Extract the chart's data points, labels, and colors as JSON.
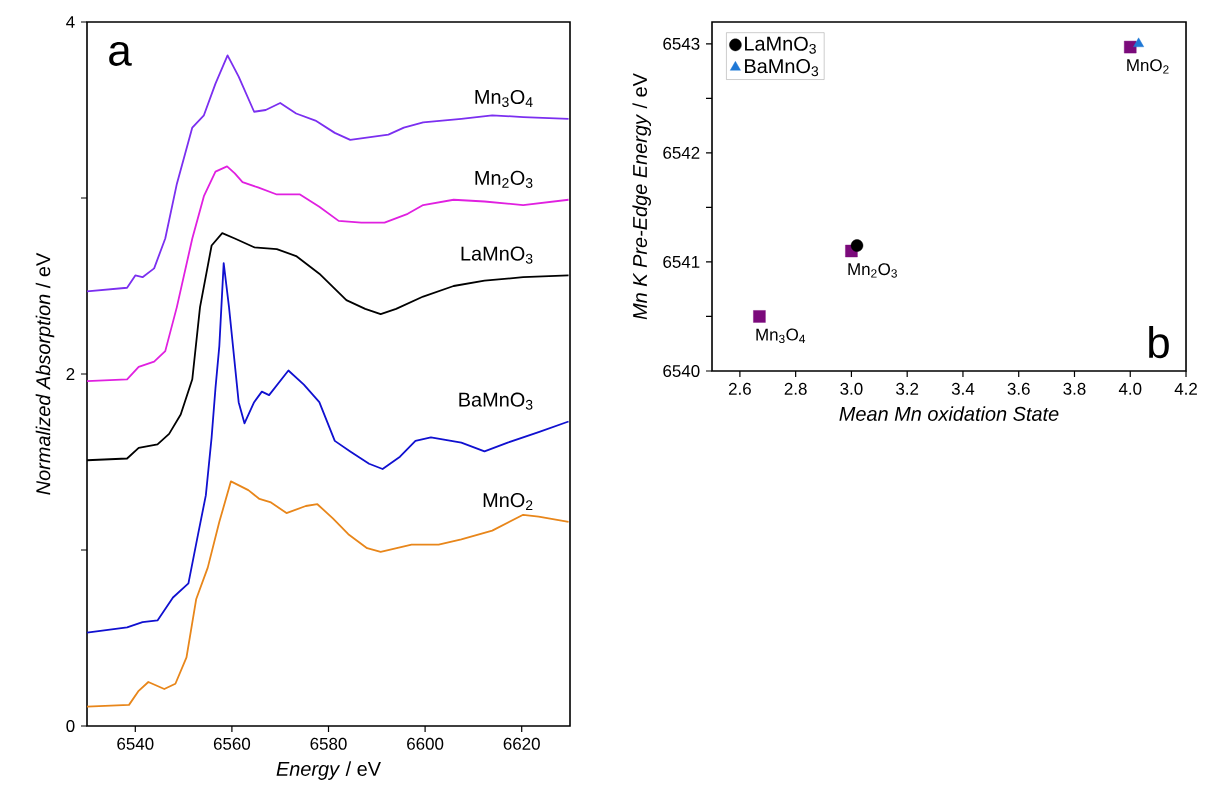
{
  "chart_data": [
    {
      "type": "line",
      "xlabel": "*Energy* / eV",
      "ylabel": "*Normalized Absorption* / eV",
      "annotations": [
        "a"
      ],
      "xlim": [
        6530,
        6630
      ],
      "ylim": [
        0,
        4
      ],
      "xticks": [
        6540,
        6560,
        6580,
        6600,
        6620
      ],
      "yticks": [
        0,
        {
          "value": 1,
          "label": null
        },
        2,
        {
          "value": 3,
          "label": null
        },
        4
      ],
      "series": [
        {
          "name": "Mn$_{3}$O$_{4}$",
          "color": "#7b2ff0",
          "x": [
            6530,
            6538.3,
            6540,
            6541.5,
            6543.9,
            6546.2,
            6548.6,
            6551.8,
            6554.2,
            6556.6,
            6559.1,
            6561.4,
            6564.6,
            6567,
            6570,
            6573.3,
            6577.3,
            6581.3,
            6584.5,
            6592.4,
            6595.6,
            6599.6,
            6607.5,
            6613.9,
            6620.3,
            6629.7
          ],
          "values": [
            2.47,
            2.49,
            2.56,
            2.55,
            2.6,
            2.77,
            3.08,
            3.4,
            3.47,
            3.65,
            3.81,
            3.69,
            3.49,
            3.5,
            3.54,
            3.48,
            3.44,
            3.37,
            3.33,
            3.36,
            3.4,
            3.43,
            3.45,
            3.47,
            3.46,
            3.45
          ]
        },
        {
          "name": "Mn$_{2}$O$_{3}$",
          "color": "#e020e0",
          "x": [
            6530,
            6538.3,
            6540.7,
            6543.9,
            6546.2,
            6548.6,
            6551.8,
            6554.2,
            6556.6,
            6559,
            6560.6,
            6562.2,
            6565.4,
            6569.3,
            6574.1,
            6578.1,
            6582.1,
            6586.8,
            6591.6,
            6596.4,
            6599.6,
            6605.9,
            6612.3,
            6620.3,
            6629.7
          ],
          "values": [
            1.96,
            1.97,
            2.04,
            2.07,
            2.13,
            2.38,
            2.77,
            3.01,
            3.15,
            3.18,
            3.14,
            3.09,
            3.06,
            3.02,
            3.02,
            2.95,
            2.87,
            2.86,
            2.86,
            2.91,
            2.96,
            2.99,
            2.98,
            2.96,
            2.99
          ]
        },
        {
          "name": "LaMnO$_{3}$",
          "color": "#000000",
          "x": [
            6530,
            6538.3,
            6540.7,
            6544.6,
            6547,
            6549.4,
            6551.8,
            6553.4,
            6555.8,
            6558,
            6560.6,
            6564.6,
            6569.3,
            6573.3,
            6578.1,
            6583.7,
            6587.6,
            6590.8,
            6594,
            6599.6,
            6605.9,
            6612.3,
            6620.3,
            6629.7
          ],
          "values": [
            1.51,
            1.52,
            1.58,
            1.6,
            1.66,
            1.77,
            1.97,
            2.38,
            2.73,
            2.8,
            2.77,
            2.72,
            2.71,
            2.67,
            2.57,
            2.42,
            2.37,
            2.34,
            2.37,
            2.44,
            2.5,
            2.53,
            2.55,
            2.56
          ]
        },
        {
          "name": "BaMnO$_{3}$",
          "color": "#1010d0",
          "x": [
            6530,
            6538.3,
            6541.5,
            6544.6,
            6547.8,
            6551,
            6553,
            6554.6,
            6555.8,
            6556.6,
            6557.4,
            6558.3,
            6559.4,
            6561.4,
            6562.6,
            6564.6,
            6566.2,
            6567.7,
            6571.7,
            6574.9,
            6578.1,
            6581.3,
            6584.5,
            6588.4,
            6591.2,
            6594.8,
            6598,
            6601.2,
            6607.5,
            6612.3,
            6617.1,
            6623.5,
            6629.7
          ],
          "values": [
            0.53,
            0.56,
            0.59,
            0.6,
            0.73,
            0.81,
            1.09,
            1.31,
            1.64,
            1.92,
            2.16,
            2.63,
            2.38,
            1.84,
            1.72,
            1.84,
            1.9,
            1.88,
            2.02,
            1.94,
            1.84,
            1.62,
            1.56,
            1.49,
            1.46,
            1.53,
            1.62,
            1.64,
            1.61,
            1.56,
            1.61,
            1.67,
            1.73
          ]
        },
        {
          "name": "MnO$_{2}$",
          "color": "#e8861a",
          "x": [
            6530,
            6538.7,
            6540.7,
            6542.7,
            6546,
            6548.3,
            6550.6,
            6552.6,
            6555,
            6557.4,
            6559.8,
            6563.4,
            6565.7,
            6568.1,
            6571.3,
            6575.3,
            6577.7,
            6580.9,
            6584.1,
            6588,
            6590.8,
            6597.2,
            6602.8,
            6607.5,
            6613.9,
            6620.3,
            6623.5,
            6629.7
          ],
          "values": [
            0.11,
            0.12,
            0.2,
            0.25,
            0.21,
            0.24,
            0.39,
            0.72,
            0.9,
            1.16,
            1.39,
            1.34,
            1.29,
            1.27,
            1.21,
            1.25,
            1.26,
            1.18,
            1.09,
            1.01,
            0.99,
            1.03,
            1.03,
            1.06,
            1.11,
            1.2,
            1.19,
            1.16
          ]
        }
      ]
    },
    {
      "type": "scatter",
      "xlabel": "Mean Mn oxidation State",
      "ylabel": "*Mn K Pre-Edge Energy* / eV",
      "legend": "top left",
      "annotations": [
        "b",
        {
          "text": "Mn$_{3}$O$_{4}$",
          "x": 2.67,
          "y": 6540.5
        },
        {
          "text": "Mn$_{2}$O$_{3}$",
          "x": 3.0,
          "y": 6541.1
        },
        {
          "text": "MnO$_{2}$",
          "x": 4.0,
          "y": 6542.97
        }
      ],
      "xlim": [
        2.5,
        4.2
      ],
      "ylim": [
        6540,
        6543.2
      ],
      "xticks": [
        2.6,
        2.8,
        {
          "value": 3,
          "label": "3.0"
        },
        3.2,
        3.4,
        3.6,
        3.8,
        {
          "value": 4,
          "label": "4.0"
        },
        4.2
      ],
      "yticks": [
        6540,
        {
          "value": 6540.5,
          "label": null
        },
        6541,
        {
          "value": 6541.5,
          "label": null
        },
        6542,
        {
          "value": 6542.5,
          "label": null
        },
        6543
      ],
      "series": [
        {
          "color": "#7b0a7b",
          "marker": "square",
          "x": [
            2.67,
            3.0,
            4.0
          ],
          "values": [
            6540.5,
            6541.1,
            6542.97
          ]
        },
        {
          "name": "LaMnO$_{3}$",
          "color": "#000000",
          "marker": "circle",
          "x": [
            3.02
          ],
          "values": [
            6541.15
          ]
        },
        {
          "name": "BaMnO$_{3}$",
          "color": "#1f78d6",
          "marker": "triangle",
          "x": [
            4.03
          ],
          "values": [
            6543.0
          ]
        }
      ]
    }
  ]
}
